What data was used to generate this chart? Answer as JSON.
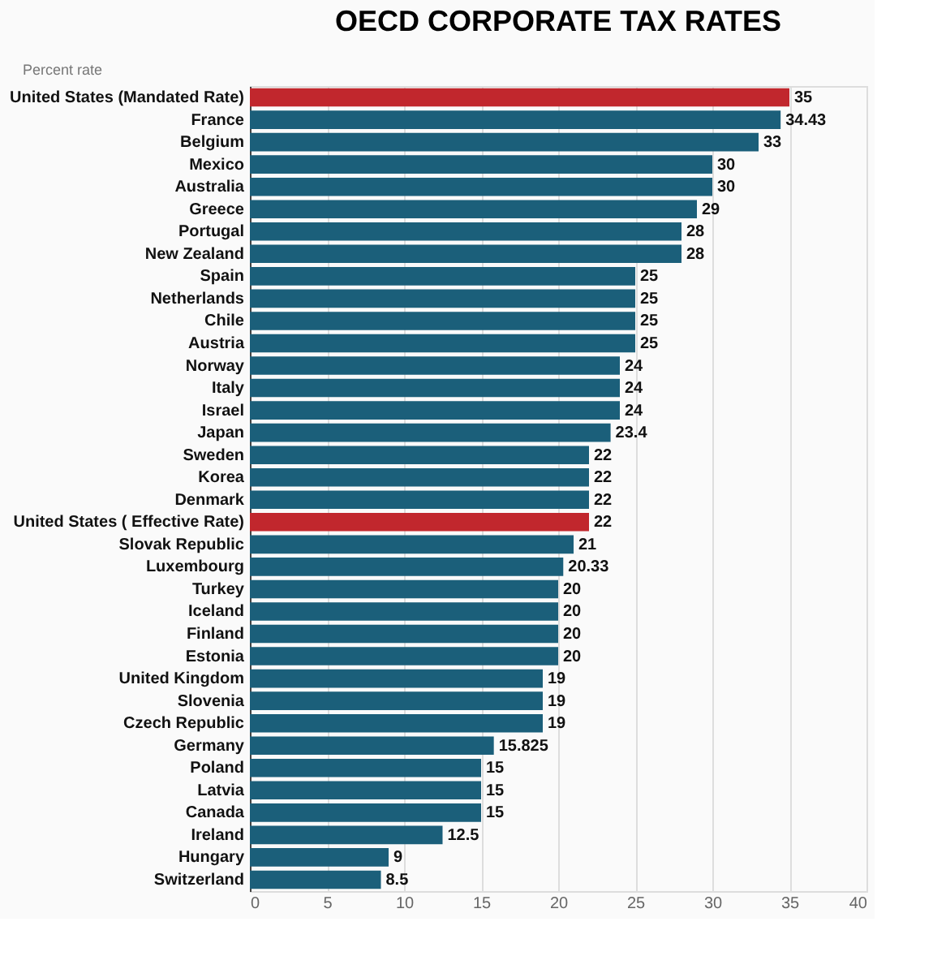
{
  "chart_data": {
    "type": "bar",
    "orientation": "horizontal",
    "title": "OECD CORPORATE TAX RATES",
    "xlabel": "Percent rate",
    "categories": [
      "United States (Mandated Rate)",
      "France",
      "Belgium",
      "Mexico",
      "Australia",
      "Greece",
      "Portugal",
      "New Zealand",
      "Spain",
      "Netherlands",
      "Chile",
      "Austria",
      "Norway",
      "Italy",
      "Israel",
      "Japan",
      "Sweden",
      "Korea",
      "Denmark",
      "United States ( Effective Rate)",
      "Slovak Republic",
      "Luxembourg",
      "Turkey",
      "Iceland",
      "Finland",
      "Estonia",
      "United Kingdom",
      "Slovenia",
      "Czech Republic",
      "Germany",
      "Poland",
      "Latvia",
      "Canada",
      "Ireland",
      "Hungary",
      "Switzerland"
    ],
    "values": [
      35,
      34.43,
      33,
      30,
      30,
      29,
      28,
      28,
      25,
      25,
      25,
      25,
      24,
      24,
      24,
      23.4,
      22,
      22,
      22,
      22,
      21,
      20.33,
      20,
      20,
      20,
      20,
      19,
      19,
      19,
      15.825,
      15,
      15,
      15,
      12.5,
      9,
      8.5
    ],
    "colors": [
      "#c1272d",
      "#1b5f7a",
      "#1b5f7a",
      "#1b5f7a",
      "#1b5f7a",
      "#1b5f7a",
      "#1b5f7a",
      "#1b5f7a",
      "#1b5f7a",
      "#1b5f7a",
      "#1b5f7a",
      "#1b5f7a",
      "#1b5f7a",
      "#1b5f7a",
      "#1b5f7a",
      "#1b5f7a",
      "#1b5f7a",
      "#1b5f7a",
      "#1b5f7a",
      "#c1272d",
      "#1b5f7a",
      "#1b5f7a",
      "#1b5f7a",
      "#1b5f7a",
      "#1b5f7a",
      "#1b5f7a",
      "#1b5f7a",
      "#1b5f7a",
      "#1b5f7a",
      "#1b5f7a",
      "#1b5f7a",
      "#1b5f7a",
      "#1b5f7a",
      "#1b5f7a",
      "#1b5f7a",
      "#1b5f7a"
    ],
    "xlim": [
      0,
      40
    ],
    "xticks": [
      0,
      5,
      10,
      15,
      20,
      25,
      30,
      35,
      40
    ],
    "grid": "x",
    "data_labels": true
  }
}
